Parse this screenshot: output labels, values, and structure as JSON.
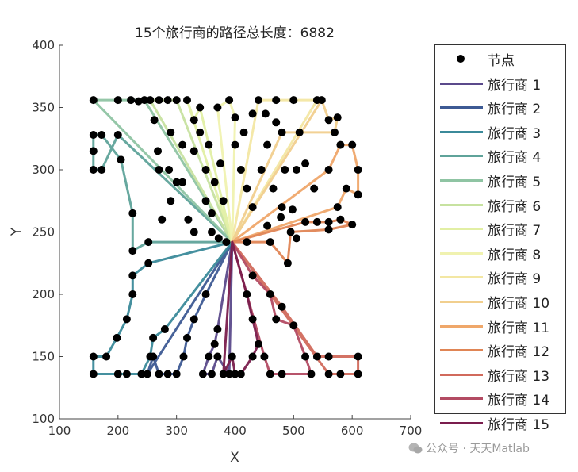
{
  "chart_data": {
    "type": "line",
    "title": "15个旅行商的路径总长度：6882",
    "xlabel": "X",
    "ylabel": "Y",
    "xlim": [
      100,
      700
    ],
    "ylim": [
      100,
      400
    ],
    "xticks": [
      100,
      200,
      300,
      400,
      500,
      600,
      700
    ],
    "yticks": [
      100,
      150,
      200,
      250,
      300,
      350,
      400
    ],
    "grid": false,
    "legend_position": "outside-right",
    "depot": [
      395,
      242
    ],
    "total_length": 6882,
    "nodes_label": "节点",
    "series": [
      {
        "name": "旅行商 1",
        "color": "#5b4a8b",
        "points": [
          [
            395,
            242
          ],
          [
            370,
            172
          ],
          [
            365,
            160
          ],
          [
            355,
            150
          ],
          [
            345,
            136
          ],
          [
            360,
            136
          ],
          [
            370,
            150
          ],
          [
            390,
            136
          ],
          [
            395,
            242
          ]
        ]
      },
      {
        "name": "旅行商 2",
        "color": "#3d5a94",
        "points": [
          [
            395,
            242
          ],
          [
            350,
            200
          ],
          [
            330,
            180
          ],
          [
            318,
            165
          ],
          [
            312,
            150
          ],
          [
            300,
            136
          ],
          [
            285,
            136
          ],
          [
            270,
            136
          ],
          [
            260,
            150
          ],
          [
            250,
            136
          ],
          [
            395,
            242
          ]
        ]
      },
      {
        "name": "旅行商 3",
        "color": "#3b8a9a",
        "points": [
          [
            395,
            242
          ],
          [
            280,
            172
          ],
          [
            260,
            165
          ],
          [
            255,
            150
          ],
          [
            240,
            136
          ],
          [
            215,
            136
          ],
          [
            200,
            136
          ],
          [
            158,
            136
          ],
          [
            158,
            150
          ],
          [
            180,
            150
          ],
          [
            198,
            165
          ],
          [
            215,
            180
          ],
          [
            225,
            200
          ],
          [
            225,
            215
          ],
          [
            252,
            225
          ],
          [
            395,
            242
          ]
        ]
      },
      {
        "name": "旅行商 4",
        "color": "#5fa39a",
        "points": [
          [
            395,
            242
          ],
          [
            385,
            242
          ],
          [
            252,
            242
          ],
          [
            225,
            235
          ],
          [
            225,
            265
          ],
          [
            205,
            308
          ],
          [
            172,
            328
          ],
          [
            158,
            328
          ],
          [
            158,
            315
          ],
          [
            158,
            300
          ],
          [
            172,
            300
          ],
          [
            200,
            328
          ],
          [
            395,
            242
          ]
        ]
      },
      {
        "name": "旅行商 5",
        "color": "#8fc4a3",
        "points": [
          [
            395,
            242
          ],
          [
            245,
            356
          ],
          [
            222,
            356
          ],
          [
            200,
            356
          ],
          [
            158,
            356
          ],
          [
            395,
            242
          ]
        ]
      },
      {
        "name": "旅行商 6",
        "color": "#c7e2a0",
        "points": [
          [
            395,
            242
          ],
          [
            255,
            356
          ],
          [
            270,
            356
          ],
          [
            285,
            356
          ],
          [
            300,
            356
          ],
          [
            395,
            242
          ]
        ]
      },
      {
        "name": "旅行商 7",
        "color": "#e2efa4",
        "points": [
          [
            395,
            242
          ],
          [
            318,
            356
          ],
          [
            330,
            340
          ],
          [
            340,
            350
          ],
          [
            395,
            242
          ]
        ]
      },
      {
        "name": "旅行商 8",
        "color": "#f0f2b0",
        "points": [
          [
            395,
            242
          ],
          [
            370,
            350
          ],
          [
            390,
            356
          ],
          [
            400,
            342
          ],
          [
            395,
            242
          ]
        ]
      },
      {
        "name": "旅行商 9",
        "color": "#f3e7a3",
        "points": [
          [
            395,
            242
          ],
          [
            440,
            356
          ],
          [
            470,
            356
          ],
          [
            500,
            356
          ],
          [
            540,
            356
          ],
          [
            395,
            242
          ]
        ]
      },
      {
        "name": "旅行商 10",
        "color": "#f1cf8e",
        "points": [
          [
            395,
            242
          ],
          [
            548,
            356
          ],
          [
            560,
            340
          ],
          [
            575,
            342
          ],
          [
            570,
            330
          ],
          [
            510,
            330
          ],
          [
            480,
            330
          ],
          [
            395,
            242
          ]
        ]
      },
      {
        "name": "旅行商 11",
        "color": "#efa76a",
        "points": [
          [
            395,
            242
          ],
          [
            560,
            300
          ],
          [
            580,
            320
          ],
          [
            600,
            320
          ],
          [
            610,
            300
          ],
          [
            610,
            280
          ],
          [
            590,
            285
          ],
          [
            575,
            270
          ],
          [
            395,
            242
          ]
        ]
      },
      {
        "name": "旅行商 12",
        "color": "#e08555",
        "points": [
          [
            395,
            242
          ],
          [
            520,
            258
          ],
          [
            540,
            258
          ],
          [
            560,
            258
          ],
          [
            580,
            260
          ],
          [
            600,
            256
          ],
          [
            560,
            252
          ],
          [
            495,
            250
          ],
          [
            490,
            225
          ],
          [
            460,
            242
          ],
          [
            420,
            242
          ],
          [
            395,
            242
          ]
        ]
      },
      {
        "name": "旅行商 13",
        "color": "#d16a5c",
        "points": [
          [
            395,
            242
          ],
          [
            480,
            190
          ],
          [
            540,
            150
          ],
          [
            560,
            150
          ],
          [
            610,
            150
          ],
          [
            610,
            136
          ],
          [
            580,
            136
          ],
          [
            560,
            136
          ],
          [
            395,
            242
          ]
        ]
      },
      {
        "name": "旅行商 14",
        "color": "#b34b63",
        "points": [
          [
            395,
            242
          ],
          [
            430,
            215
          ],
          [
            460,
            200
          ],
          [
            470,
            180
          ],
          [
            500,
            175
          ],
          [
            520,
            150
          ],
          [
            530,
            136
          ],
          [
            480,
            136
          ],
          [
            460,
            136
          ],
          [
            450,
            150
          ],
          [
            395,
            242
          ]
        ]
      },
      {
        "name": "旅行商 15",
        "color": "#7a1d4d",
        "points": [
          [
            395,
            242
          ],
          [
            420,
            200
          ],
          [
            430,
            180
          ],
          [
            440,
            160
          ],
          [
            430,
            150
          ],
          [
            410,
            136
          ],
          [
            400,
            136
          ],
          [
            395,
            150
          ],
          [
            380,
            136
          ],
          [
            395,
            242
          ]
        ]
      }
    ],
    "extra_nodes": [
      [
        235,
        355
      ],
      [
        262,
        340
      ],
      [
        290,
        330
      ],
      [
        310,
        320
      ],
      [
        330,
        315
      ],
      [
        350,
        300
      ],
      [
        365,
        290
      ],
      [
        380,
        275
      ],
      [
        410,
        300
      ],
      [
        420,
        285
      ],
      [
        430,
        270
      ],
      [
        445,
        300
      ],
      [
        455,
        320
      ],
      [
        465,
        285
      ],
      [
        480,
        270
      ],
      [
        340,
        330
      ],
      [
        355,
        320
      ],
      [
        375,
        305
      ],
      [
        400,
        320
      ],
      [
        415,
        330
      ],
      [
        430,
        345
      ],
      [
        452,
        345
      ],
      [
        470,
        338
      ],
      [
        350,
        275
      ],
      [
        360,
        265
      ],
      [
        310,
        290
      ],
      [
        290,
        275
      ],
      [
        275,
        260
      ],
      [
        270,
        300
      ],
      [
        268,
        315
      ],
      [
        287,
        300
      ],
      [
        300,
        290
      ],
      [
        320,
        260
      ],
      [
        330,
        250
      ],
      [
        360,
        250
      ],
      [
        372,
        245
      ],
      [
        485,
        300
      ],
      [
        505,
        300
      ],
      [
        520,
        305
      ],
      [
        535,
        285
      ],
      [
        455,
        255
      ],
      [
        478,
        262
      ],
      [
        498,
        268
      ],
      [
        505,
        245
      ]
    ]
  },
  "legend": {
    "nodes_label": "节点",
    "items": [
      {
        "label": "旅行商 1",
        "color": "#5b4a8b"
      },
      {
        "label": "旅行商 2",
        "color": "#3d5a94"
      },
      {
        "label": "旅行商 3",
        "color": "#3b8a9a"
      },
      {
        "label": "旅行商 4",
        "color": "#5fa39a"
      },
      {
        "label": "旅行商 5",
        "color": "#8fc4a3"
      },
      {
        "label": "旅行商 6",
        "color": "#c7e2a0"
      },
      {
        "label": "旅行商 7",
        "color": "#e2efa4"
      },
      {
        "label": "旅行商 8",
        "color": "#f0f2b0"
      },
      {
        "label": "旅行商 9",
        "color": "#f3e7a3"
      },
      {
        "label": "旅行商 10",
        "color": "#f1cf8e"
      },
      {
        "label": "旅行商 11",
        "color": "#efa76a"
      },
      {
        "label": "旅行商 12",
        "color": "#e08555"
      },
      {
        "label": "旅行商 13",
        "color": "#d16a5c"
      },
      {
        "label": "旅行商 14",
        "color": "#b34b63"
      },
      {
        "label": "旅行商 15",
        "color": "#7a1d4d"
      }
    ]
  },
  "watermark": {
    "text": "公众号 · 天天Matlab"
  }
}
